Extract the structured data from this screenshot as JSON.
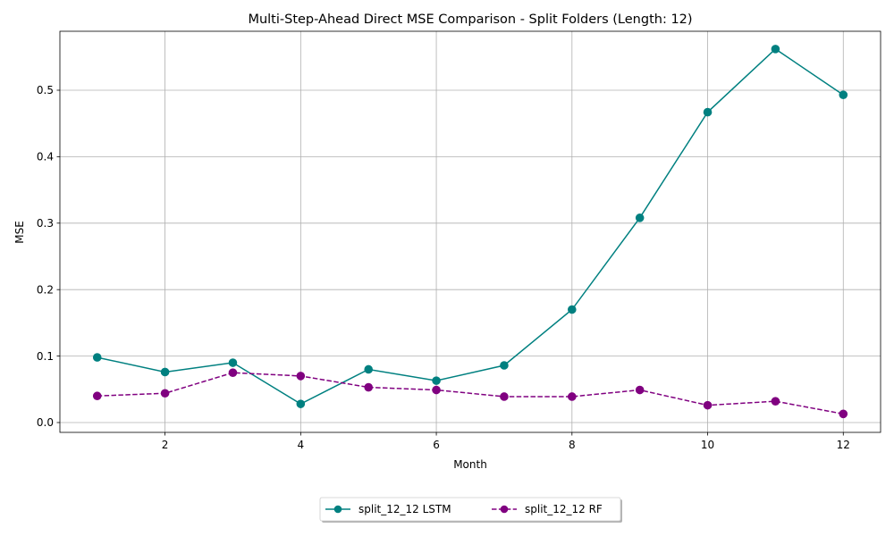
{
  "chart_data": {
    "type": "line",
    "title": "Multi-Step-Ahead Direct MSE Comparison - Split Folders (Length: 12)",
    "xlabel": "Month",
    "ylabel": "MSE",
    "xlim": [
      0.45,
      12.55
    ],
    "ylim": [
      -0.0148,
      0.5887
    ],
    "xticks": [
      2,
      4,
      6,
      8,
      10,
      12
    ],
    "xtick_labels": [
      "2",
      "4",
      "6",
      "8",
      "10",
      "12"
    ],
    "yticks": [
      0.0,
      0.1,
      0.2,
      0.3,
      0.4,
      0.5
    ],
    "ytick_labels": [
      "0.0",
      "0.1",
      "0.2",
      "0.3",
      "0.4",
      "0.5"
    ],
    "grid": true,
    "legend_position": "bottom-center",
    "x": [
      1,
      2,
      3,
      4,
      5,
      6,
      7,
      8,
      9,
      10,
      11,
      12
    ],
    "series": [
      {
        "name": "split_12_12 LSTM",
        "color": "#008080",
        "line_style": "solid",
        "marker": "circle",
        "values": [
          0.098,
          0.076,
          0.09,
          0.028,
          0.08,
          0.063,
          0.086,
          0.17,
          0.308,
          0.467,
          0.562,
          0.493
        ]
      },
      {
        "name": "split_12_12 RF",
        "color": "#800080",
        "line_style": "dashed",
        "marker": "circle",
        "values": [
          0.04,
          0.044,
          0.075,
          0.07,
          0.053,
          0.049,
          0.039,
          0.039,
          0.049,
          0.026,
          0.032,
          0.013
        ]
      }
    ]
  }
}
